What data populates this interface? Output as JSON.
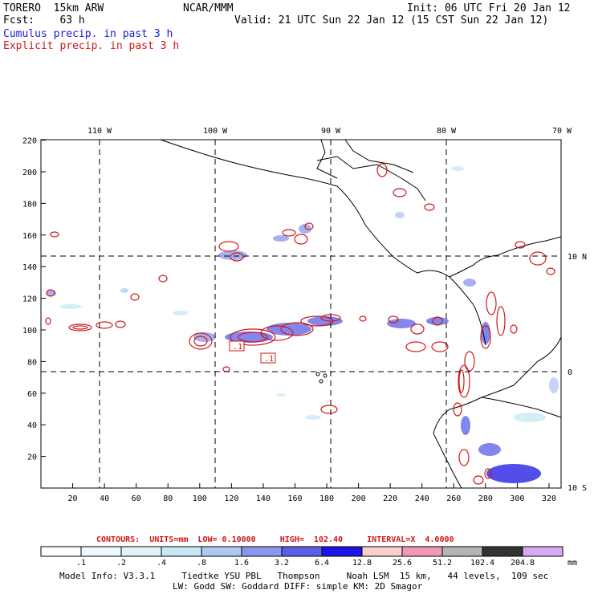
{
  "header": {
    "model": "TORERO  15km ARW",
    "org": "NCAR/MMM",
    "init": "Init: 06 UTC Fri 20 Jan 12",
    "fcst": "Fcst:    63 h",
    "valid": "Valid: 21 UTC Sun 22 Jan 12 (15 CST Sun 22 Jan 12)",
    "cumulus": "Cumulus precip. in past 3 h",
    "explicit": "Explicit precip. in past 3 h"
  },
  "map": {
    "lon_labels": [
      "110 W",
      "100 W",
      "90 W",
      "80 W",
      "70 W"
    ],
    "lat_labels": [
      "10 N",
      "0",
      "10 S"
    ],
    "x_ticks": [
      "20",
      "40",
      "60",
      "80",
      "100",
      "120",
      "140",
      "160",
      "180",
      "200",
      "220",
      "240",
      "260",
      "280",
      "300",
      "320"
    ],
    "y_ticks": [
      "20",
      "40",
      "60",
      "80",
      "100",
      "120",
      "140",
      "160",
      "180",
      "200",
      "220"
    ],
    "low_boxes": [
      ".1",
      ".1"
    ]
  },
  "contours": {
    "text": "CONTOURS:  UNITS=mm  LOW= 0.10000     HIGH=  102.40     INTERVAL=X  4.0000"
  },
  "colorbar": {
    "labels": [
      ".1",
      ".2",
      ".4",
      ".8",
      "1.6",
      "3.2",
      "6.4",
      "12.8",
      "25.6",
      "51.2",
      "102.4",
      "204.8"
    ],
    "unit": "mm",
    "colors": [
      "#ffffff",
      "#eef8ff",
      "#e0f4f8",
      "#c6e8f4",
      "#b0c8f0",
      "#8c96ec",
      "#5a5ee8",
      "#1a14e4",
      "#f8d0d0",
      "#f098b4",
      "#b4b4b4",
      "#323232",
      "#d8a8f4"
    ]
  },
  "footer": {
    "line1": "Model Info: V3.3.1     Tiedtke YSU PBL   Thompson     Noah LSM  15 km,   44 levels,  109 sec",
    "line2": "LW: Godd SW: Goddard DIFF: simple KM: 2D Smagor"
  }
}
